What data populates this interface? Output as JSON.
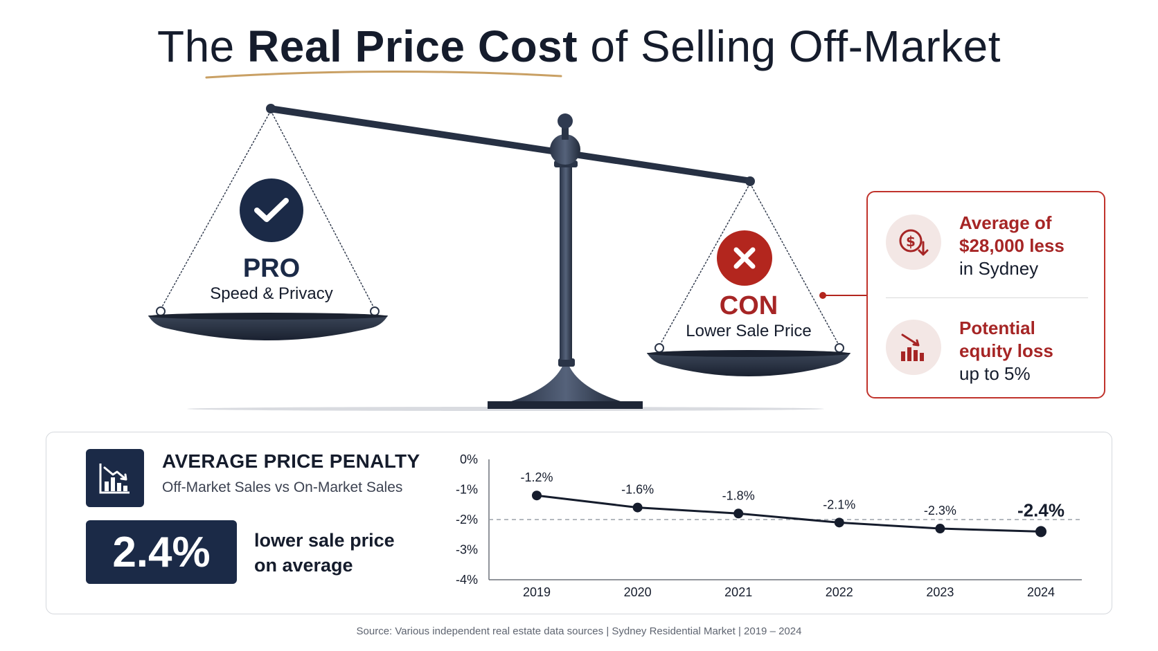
{
  "title": {
    "part1": "The ",
    "bold": "Real Price Cost",
    "part2": " of Selling Off-Market"
  },
  "pro": {
    "label": "PRO",
    "sublabel": "Speed & Privacy",
    "icon": "checkmark-icon"
  },
  "con": {
    "label": "CON",
    "sublabel": "Lower Sale Price",
    "icon": "x-icon"
  },
  "info_card": {
    "items": [
      {
        "strong": "Average of $28,000 less",
        "rest": "in Sydney",
        "icon": "dollar-down-icon"
      },
      {
        "strong": "Potential equity loss",
        "rest": "up to 5%",
        "icon": "bar-chart-down-icon"
      }
    ]
  },
  "penalty": {
    "title": "AVERAGE PRICE PENALTY",
    "subtitle": "Off-Market Sales vs On-Market Sales",
    "big_value": "2.4%",
    "caption_line1": "lower sale price",
    "caption_line2": "on average"
  },
  "chart_data": {
    "type": "line",
    "x": [
      "2019",
      "2020",
      "2021",
      "2022",
      "2023",
      "2024"
    ],
    "series": [
      {
        "values": [
          -1.2,
          -1.6,
          -1.8,
          -2.1,
          -2.3,
          -2.4
        ]
      }
    ],
    "data_labels": [
      "-1.2%",
      "-1.6%",
      "-1.8%",
      "-2.1%",
      "-2.3%",
      "-2.4%"
    ],
    "yticks": [
      "0%",
      "-1%",
      "-2%",
      "-3%",
      "-4%"
    ],
    "ylim": [
      -4,
      0
    ],
    "reference_line": -2,
    "title": "",
    "xlabel": "",
    "ylabel": "",
    "grid": false,
    "colors": {
      "line": "#151c2c",
      "reference": "#9aa0a8"
    }
  },
  "source": "Source: Various independent real estate data sources  |  Sydney Residential Market  |  2019 – 2024",
  "colors": {
    "navy": "#1b2a47",
    "red": "#b3261e",
    "gold": "#c9a064"
  }
}
